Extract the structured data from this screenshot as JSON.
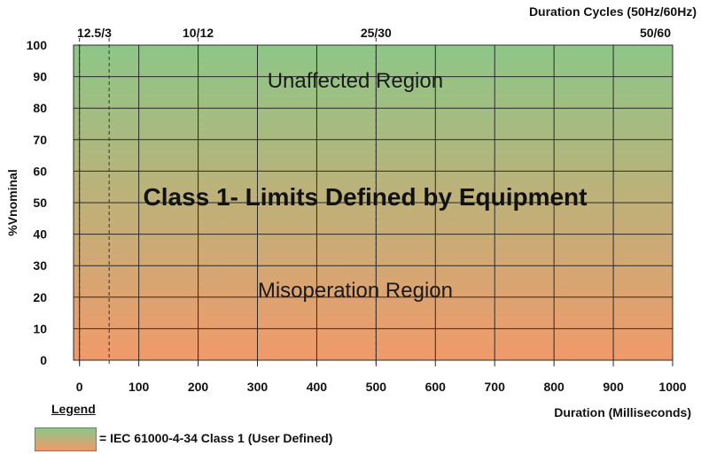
{
  "chart_data": {
    "type": "area",
    "title": "Class 1- Limits Defined by Equipment",
    "xlabel": "Duration (Milliseconds)",
    "ylabel": "%Vnominal",
    "x2label": "Duration Cycles (50Hz/60Hz)",
    "xlim": [
      -10,
      1000
    ],
    "ylim": [
      0,
      100
    ],
    "x_ticks": [
      0,
      100,
      200,
      300,
      400,
      500,
      600,
      700,
      800,
      900,
      1000
    ],
    "y_ticks": [
      0,
      10,
      20,
      30,
      40,
      50,
      60,
      70,
      80,
      90,
      100
    ],
    "grid": true,
    "cycle_markers": [
      {
        "label": "12.5/3",
        "x": [
          0,
          50
        ]
      },
      {
        "label": "10/12",
        "x": [
          200
        ]
      },
      {
        "label": "25/30",
        "x": [
          500
        ]
      },
      {
        "label": "50/60",
        "x": [
          1000
        ]
      }
    ],
    "regions": [
      {
        "label": "Unaffected Region",
        "x": 465,
        "y": 89
      },
      {
        "label": "Misoperation Region",
        "x": 465,
        "y": 22.5
      }
    ],
    "gradient_colors": {
      "top": "#8dc788",
      "bottom": "#f19a6a"
    }
  },
  "legend": {
    "title": "Legend",
    "entry": "= IEC 61000-4-34 Class 1 (User Defined)"
  }
}
